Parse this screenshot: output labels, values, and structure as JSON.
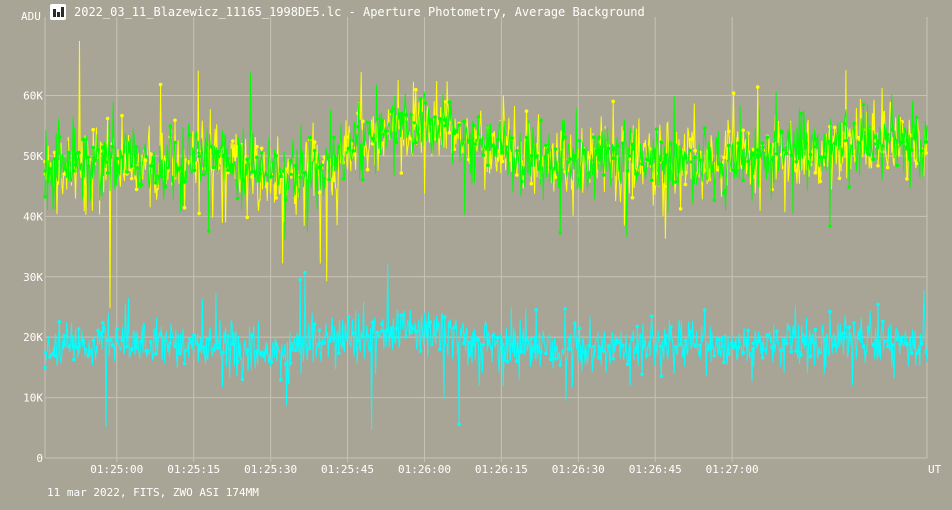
{
  "window": {
    "title": "2022_03_11_Blazewicz_11165_1998DE5.lc - Aperture Photometry, Average Background",
    "icon": "chart-window-icon"
  },
  "footer": {
    "caption": "11 mar 2022, FITS, ZWO ASI 174MM"
  },
  "colors": {
    "background": "#a9a596",
    "grid": "#c6c2b5",
    "text": "#ffffff"
  },
  "chart_data": {
    "type": "line",
    "title": "",
    "ylabel": "ADU",
    "xlabel": "UT",
    "ylim": [
      0,
      73000
    ],
    "xlim": [
      "01:24:46",
      "01:27:38"
    ],
    "y_ticks": [
      {
        "value": 0,
        "label": "0"
      },
      {
        "value": 10000,
        "label": "10K"
      },
      {
        "value": 20000,
        "label": "20K"
      },
      {
        "value": 30000,
        "label": "30K"
      },
      {
        "value": 40000,
        "label": "40K"
      },
      {
        "value": 50000,
        "label": "50K"
      },
      {
        "value": 60000,
        "label": "60K"
      }
    ],
    "x_ticks": [
      "01:25:00",
      "01:25:15",
      "01:25:30",
      "01:25:45",
      "01:26:00",
      "01:26:15",
      "01:26:30",
      "01:26:45",
      "01:27:00"
    ],
    "grid": true,
    "series": [
      {
        "color": "#ffff00",
        "x": [
          "01:24:46",
          "01:24:52",
          "01:24:58",
          "01:25:04",
          "01:25:10",
          "01:25:16",
          "01:25:22",
          "01:25:28",
          "01:25:34",
          "01:25:40",
          "01:25:46",
          "01:25:52",
          "01:25:58",
          "01:26:04",
          "01:26:10",
          "01:26:16",
          "01:26:22",
          "01:26:28",
          "01:26:34",
          "01:26:40",
          "01:26:46",
          "01:26:52",
          "01:26:58",
          "01:27:04",
          "01:27:10",
          "01:27:16",
          "01:27:22",
          "01:27:28",
          "01:27:34"
        ],
        "values": [
          47000,
          48000,
          49500,
          48500,
          47500,
          50000,
          49000,
          47500,
          46500,
          48000,
          52000,
          54000,
          55000,
          55500,
          52500,
          51000,
          50500,
          49500,
          49000,
          49500,
          49000,
          49500,
          49000,
          50000,
          50500,
          51000,
          52000,
          52500,
          52000
        ]
      },
      {
        "color": "#00ff00",
        "x": [
          "01:24:46",
          "01:24:52",
          "01:24:58",
          "01:25:04",
          "01:25:10",
          "01:25:16",
          "01:25:22",
          "01:25:28",
          "01:25:34",
          "01:25:40",
          "01:25:46",
          "01:25:52",
          "01:25:58",
          "01:26:04",
          "01:26:10",
          "01:26:16",
          "01:26:22",
          "01:26:28",
          "01:26:34",
          "01:26:40",
          "01:26:46",
          "01:26:52",
          "01:26:58",
          "01:27:04",
          "01:27:10",
          "01:27:16",
          "01:27:22",
          "01:27:28",
          "01:27:34"
        ],
        "values": [
          47500,
          48500,
          49000,
          48000,
          48000,
          50500,
          48500,
          47000,
          47000,
          48500,
          52500,
          53500,
          55500,
          55000,
          52000,
          51500,
          50000,
          49000,
          49500,
          50000,
          49500,
          49000,
          48500,
          50500,
          51000,
          51500,
          52500,
          52000,
          51500
        ]
      },
      {
        "color": "#00ffff",
        "x": [
          "01:24:46",
          "01:24:52",
          "01:24:58",
          "01:25:04",
          "01:25:10",
          "01:25:16",
          "01:25:22",
          "01:25:28",
          "01:25:34",
          "01:25:40",
          "01:25:46",
          "01:25:52",
          "01:25:58",
          "01:26:04",
          "01:26:10",
          "01:26:16",
          "01:26:22",
          "01:26:28",
          "01:26:34",
          "01:26:40",
          "01:26:46",
          "01:26:52",
          "01:26:58",
          "01:27:04",
          "01:27:10",
          "01:27:16",
          "01:27:22",
          "01:27:28",
          "01:27:34"
        ],
        "values": [
          17500,
          18500,
          19500,
          19000,
          18500,
          18500,
          18000,
          17500,
          18000,
          19000,
          20500,
          21000,
          21500,
          20500,
          19500,
          19000,
          18500,
          18000,
          18500,
          18000,
          18500,
          19000,
          18500,
          19000,
          19500,
          19000,
          20000,
          19500,
          19000
        ]
      }
    ]
  }
}
